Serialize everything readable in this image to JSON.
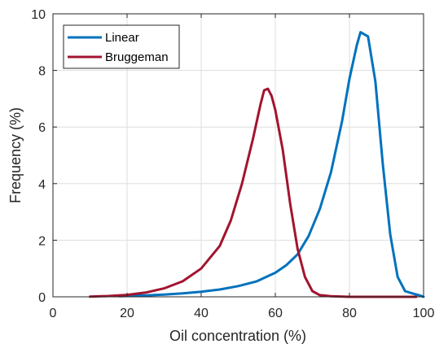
{
  "chart_data": {
    "type": "line",
    "title": "",
    "xlabel": "Oil concentration (%)",
    "ylabel": "Frequency (%)",
    "xlim": [
      0,
      100
    ],
    "ylim": [
      0,
      10
    ],
    "xticks": [
      "0",
      "20",
      "40",
      "60",
      "80",
      "100"
    ],
    "yticks": [
      "0",
      "2",
      "4",
      "6",
      "8",
      "10"
    ],
    "grid": true,
    "legend_position": "top-left",
    "series": [
      {
        "name": "Linear",
        "color": "#0072BD",
        "x": [
          18,
          25,
          30,
          35,
          40,
          45,
          50,
          55,
          60,
          63,
          66,
          69,
          72,
          75,
          78,
          80,
          82,
          83,
          85,
          87,
          89,
          91,
          93,
          95,
          97,
          99,
          100
        ],
        "y": [
          0.02,
          0.05,
          0.08,
          0.12,
          0.18,
          0.26,
          0.38,
          0.55,
          0.85,
          1.12,
          1.5,
          2.15,
          3.1,
          4.4,
          6.2,
          7.7,
          8.9,
          9.35,
          9.2,
          7.6,
          4.7,
          2.2,
          0.7,
          0.2,
          0.12,
          0.05,
          0.0
        ]
      },
      {
        "name": "Bruggeman",
        "color": "#A2142F",
        "x": [
          10,
          15,
          20,
          25,
          30,
          35,
          40,
          45,
          48,
          51,
          54,
          56,
          57,
          58,
          59,
          60,
          62,
          64,
          66,
          68,
          70,
          72,
          75,
          80,
          90,
          98
        ],
        "y": [
          0.01,
          0.03,
          0.07,
          0.15,
          0.3,
          0.55,
          1.0,
          1.8,
          2.7,
          4.0,
          5.6,
          6.8,
          7.3,
          7.35,
          7.1,
          6.6,
          5.2,
          3.3,
          1.7,
          0.7,
          0.2,
          0.06,
          0.02,
          0.0,
          0.0,
          0.0
        ]
      }
    ]
  }
}
